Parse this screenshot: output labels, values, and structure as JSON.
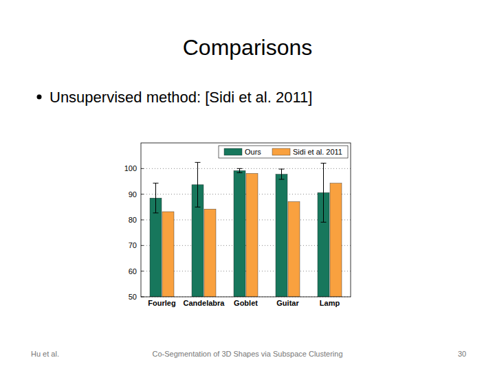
{
  "slide": {
    "title": "Comparisons",
    "bullet": "Unsupervised method: [Sidi et al. 2011]",
    "footer_left": "Hu et al.",
    "footer_center": "Co-Segmentation of 3D Shapes via Subspace Clustering",
    "page_number": "30"
  },
  "chart_data": {
    "type": "bar",
    "categories": [
      "Fourleg",
      "Candelabra",
      "Goblet",
      "Guitar",
      "Lamp"
    ],
    "series": [
      {
        "name": "Ours",
        "color": "#17775c",
        "values": [
          88.5,
          93.7,
          99.2,
          97.8,
          90.6
        ],
        "errors": [
          5.8,
          8.7,
          0.8,
          2.0,
          11.5
        ]
      },
      {
        "name": "Sidi et al. 2011",
        "color": "#f9a13f",
        "values": [
          83.2,
          84.2,
          98.1,
          87.1,
          94.3
        ]
      }
    ],
    "ylim": [
      50,
      110
    ],
    "yticks": [
      50,
      60,
      70,
      80,
      90,
      100
    ],
    "grid": true,
    "legend": "upper-right"
  }
}
